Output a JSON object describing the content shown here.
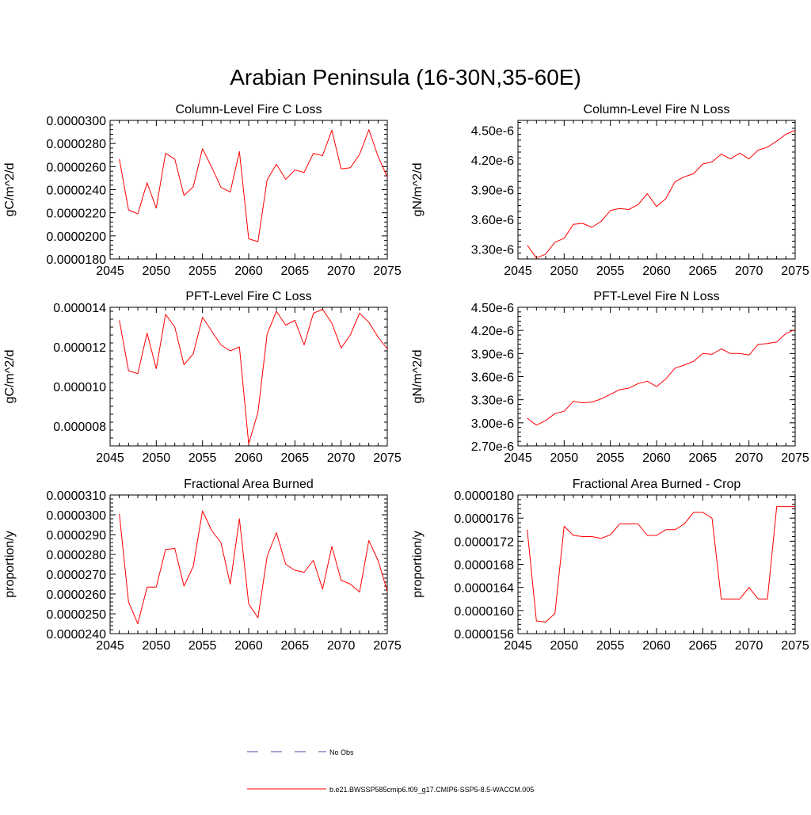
{
  "page": {
    "title": "Arabian Peninsula (16-30N,35-60E)"
  },
  "legend": {
    "items": [
      {
        "label": "No Obs",
        "color": "#4a4aa8",
        "style": "dashed"
      },
      {
        "label": "b.e21.BWSSP585cmip6.f09_g17.CMIP6-SSP5-8.5-WACCM.005",
        "color": "#ff0000",
        "style": "solid"
      }
    ]
  },
  "chart_data": [
    {
      "type": "line",
      "title": "Column-Level Fire C Loss",
      "ylabel": "gC/m^2/d",
      "xlim": [
        2045,
        2075
      ],
      "ylim": [
        1.8e-05,
        3e-05
      ],
      "xticks": [
        "2045",
        "2050",
        "2055",
        "2060",
        "2065",
        "2070",
        "2075"
      ],
      "yticks": [
        "0.0000180",
        "0.0000200",
        "0.0000220",
        "0.0000240",
        "0.0000260",
        "0.0000280",
        "0.0000300"
      ],
      "series": [
        {
          "name": "b.e21.BWSSP585cmip6.f09_g17.CMIP6-SSP5-8.5-WACCM.005",
          "color": "#ff0000",
          "x": [
            2046,
            2047,
            2048,
            2049,
            2050,
            2051,
            2052,
            2053,
            2054,
            2055,
            2056,
            2057,
            2058,
            2059,
            2060,
            2061,
            2062,
            2063,
            2064,
            2065,
            2066,
            2067,
            2068,
            2069,
            2070,
            2071,
            2072,
            2073,
            2074,
            2075
          ],
          "values": [
            2.665e-05,
            2.225e-05,
            2.19e-05,
            2.46e-05,
            2.24e-05,
            2.715e-05,
            2.665e-05,
            2.35e-05,
            2.425e-05,
            2.755e-05,
            2.595e-05,
            2.42e-05,
            2.38e-05,
            2.73e-05,
            1.975e-05,
            1.95e-05,
            2.485e-05,
            2.62e-05,
            2.49e-05,
            2.57e-05,
            2.55e-05,
            2.715e-05,
            2.695e-05,
            2.915e-05,
            2.58e-05,
            2.59e-05,
            2.705e-05,
            2.92e-05,
            2.69e-05,
            2.51e-05
          ]
        }
      ]
    },
    {
      "type": "line",
      "title": "Column-Level Fire N Loss",
      "ylabel": "gN/m^2/d",
      "xlim": [
        2045,
        2075
      ],
      "ylim": [
        3.2e-06,
        4.6e-06
      ],
      "xticks": [
        "2045",
        "2050",
        "2055",
        "2060",
        "2065",
        "2070",
        "2075"
      ],
      "yticks": [
        "3.30e-6",
        "3.60e-6",
        "3.90e-6",
        "4.20e-6",
        "4.50e-6"
      ],
      "series": [
        {
          "name": "b.e21.BWSSP585cmip6.f09_g17.CMIP6-SSP5-8.5-WACCM.005",
          "color": "#ff0000",
          "x": [
            2046,
            2047,
            2048,
            2049,
            2050,
            2051,
            2052,
            2053,
            2054,
            2055,
            2056,
            2057,
            2058,
            2059,
            2060,
            2061,
            2062,
            2063,
            2064,
            2065,
            2066,
            2067,
            2068,
            2069,
            2070,
            2071,
            2072,
            2073,
            2074,
            2075
          ],
          "values": [
            3.34e-06,
            3.21e-06,
            3.25e-06,
            3.37e-06,
            3.41e-06,
            3.55e-06,
            3.56e-06,
            3.52e-06,
            3.58e-06,
            3.69e-06,
            3.71e-06,
            3.7e-06,
            3.75e-06,
            3.86e-06,
            3.73e-06,
            3.81e-06,
            3.98e-06,
            4.03e-06,
            4.06e-06,
            4.16e-06,
            4.18e-06,
            4.26e-06,
            4.21e-06,
            4.27e-06,
            4.21e-06,
            4.3e-06,
            4.33e-06,
            4.39e-06,
            4.46e-06,
            4.5e-06
          ]
        }
      ]
    },
    {
      "type": "line",
      "title": "PFT-Level Fire C Loss",
      "ylabel": "gC/m^2/d",
      "xlim": [
        2045,
        2075
      ],
      "ylim": [
        7e-06,
        1.4e-05
      ],
      "xticks": [
        "2045",
        "2050",
        "2055",
        "2060",
        "2065",
        "2070",
        "2075"
      ],
      "yticks": [
        "0.000008",
        "0.000010",
        "0.000012",
        "0.000014"
      ],
      "series": [
        {
          "name": "b.e21.BWSSP585cmip6.f09_g17.CMIP6-SSP5-8.5-WACCM.005",
          "color": "#ff0000",
          "x": [
            2046,
            2047,
            2048,
            2049,
            2050,
            2051,
            2052,
            2053,
            2054,
            2055,
            2056,
            2057,
            2058,
            2059,
            2060,
            2061,
            2062,
            2063,
            2064,
            2065,
            2066,
            2067,
            2068,
            2069,
            2070,
            2071,
            2072,
            2073,
            2074,
            2075
          ],
          "values": [
            1.335e-05,
            1.08e-05,
            1.065e-05,
            1.27e-05,
            1.09e-05,
            1.365e-05,
            1.3e-05,
            1.11e-05,
            1.165e-05,
            1.35e-05,
            1.28e-05,
            1.21e-05,
            1.18e-05,
            1.2e-05,
            7.1e-06,
            8.7e-06,
            1.265e-05,
            1.38e-05,
            1.31e-05,
            1.335e-05,
            1.21e-05,
            1.37e-05,
            1.39e-05,
            1.32e-05,
            1.195e-05,
            1.26e-05,
            1.37e-05,
            1.325e-05,
            1.25e-05,
            1.19e-05
          ]
        }
      ]
    },
    {
      "type": "line",
      "title": "PFT-Level Fire N Loss",
      "ylabel": "gN/m^2/d",
      "xlim": [
        2045,
        2075
      ],
      "ylim": [
        2.7e-06,
        4.5e-06
      ],
      "xticks": [
        "2045",
        "2050",
        "2055",
        "2060",
        "2065",
        "2070",
        "2075"
      ],
      "yticks": [
        "2.70e-6",
        "3.00e-6",
        "3.30e-6",
        "3.60e-6",
        "3.90e-6",
        "4.20e-6",
        "4.50e-6"
      ],
      "series": [
        {
          "name": "b.e21.BWSSP585cmip6.f09_g17.CMIP6-SSP5-8.5-WACCM.005",
          "color": "#ff0000",
          "x": [
            2046,
            2047,
            2048,
            2049,
            2050,
            2051,
            2052,
            2053,
            2054,
            2055,
            2056,
            2057,
            2058,
            2059,
            2060,
            2061,
            2062,
            2063,
            2064,
            2065,
            2066,
            2067,
            2068,
            2069,
            2070,
            2071,
            2072,
            2073,
            2074,
            2075
          ],
          "values": [
            3.06e-06,
            2.97e-06,
            3.03e-06,
            3.12e-06,
            3.15e-06,
            3.28e-06,
            3.26e-06,
            3.27e-06,
            3.31e-06,
            3.37e-06,
            3.43e-06,
            3.45e-06,
            3.51e-06,
            3.54e-06,
            3.47e-06,
            3.57e-06,
            3.71e-06,
            3.75e-06,
            3.8e-06,
            3.9e-06,
            3.89e-06,
            3.96e-06,
            3.9e-06,
            3.9e-06,
            3.88e-06,
            4.02e-06,
            4.03e-06,
            4.05e-06,
            4.16e-06,
            4.21e-06
          ]
        }
      ]
    },
    {
      "type": "line",
      "title": "Fractional Area Burned",
      "ylabel": "proportion/y",
      "xlim": [
        2045,
        2075
      ],
      "ylim": [
        2.4e-05,
        3.1e-05
      ],
      "xticks": [
        "2045",
        "2050",
        "2055",
        "2060",
        "2065",
        "2070",
        "2075"
      ],
      "yticks": [
        "0.0000240",
        "0.0000250",
        "0.0000260",
        "0.0000270",
        "0.0000280",
        "0.0000290",
        "0.0000300",
        "0.0000310"
      ],
      "series": [
        {
          "name": "b.e21.BWSSP585cmip6.f09_g17.CMIP6-SSP5-8.5-WACCM.005",
          "color": "#ff0000",
          "x": [
            2046,
            2047,
            2048,
            2049,
            2050,
            2051,
            2052,
            2053,
            2054,
            2055,
            2056,
            2057,
            2058,
            2059,
            2060,
            2061,
            2062,
            2063,
            2064,
            2065,
            2066,
            2067,
            2068,
            2069,
            2070,
            2071,
            2072,
            2073,
            2074,
            2075
          ],
          "values": [
            3.005e-05,
            2.56e-05,
            2.45e-05,
            2.635e-05,
            2.635e-05,
            2.825e-05,
            2.83e-05,
            2.64e-05,
            2.74e-05,
            3.02e-05,
            2.92e-05,
            2.86e-05,
            2.65e-05,
            2.98e-05,
            2.55e-05,
            2.48e-05,
            2.79e-05,
            2.91e-05,
            2.75e-05,
            2.72e-05,
            2.71e-05,
            2.77e-05,
            2.625e-05,
            2.84e-05,
            2.67e-05,
            2.65e-05,
            2.61e-05,
            2.87e-05,
            2.77e-05,
            2.615e-05
          ]
        }
      ]
    },
    {
      "type": "line",
      "title": "Fractional Area Burned - Crop",
      "ylabel": "proportion/y",
      "xlim": [
        2045,
        2075
      ],
      "ylim": [
        1.56e-05,
        1.8e-05
      ],
      "xticks": [
        "2045",
        "2050",
        "2055",
        "2060",
        "2065",
        "2070",
        "2075"
      ],
      "yticks": [
        "0.0000156",
        "0.0000160",
        "0.0000164",
        "0.0000168",
        "0.0000172",
        "0.0000176",
        "0.0000180"
      ],
      "series": [
        {
          "name": "b.e21.BWSSP585cmip6.f09_g17.CMIP6-SSP5-8.5-WACCM.005",
          "color": "#ff0000",
          "x": [
            2046,
            2047,
            2048,
            2049,
            2050,
            2051,
            2052,
            2053,
            2054,
            2055,
            2056,
            2057,
            2058,
            2059,
            2060,
            2061,
            2062,
            2063,
            2064,
            2065,
            2066,
            2067,
            2068,
            2069,
            2070,
            2071,
            2072,
            2073,
            2074,
            2075
          ],
          "values": [
            1.74e-05,
            1.582e-05,
            1.58e-05,
            1.595e-05,
            1.746e-05,
            1.73e-05,
            1.728e-05,
            1.728e-05,
            1.725e-05,
            1.731e-05,
            1.75e-05,
            1.75e-05,
            1.75e-05,
            1.73e-05,
            1.73e-05,
            1.74e-05,
            1.74e-05,
            1.75e-05,
            1.77e-05,
            1.77e-05,
            1.76e-05,
            1.62e-05,
            1.62e-05,
            1.62e-05,
            1.64e-05,
            1.62e-05,
            1.62e-05,
            1.78e-05,
            1.78e-05,
            1.78e-05
          ]
        }
      ]
    }
  ]
}
